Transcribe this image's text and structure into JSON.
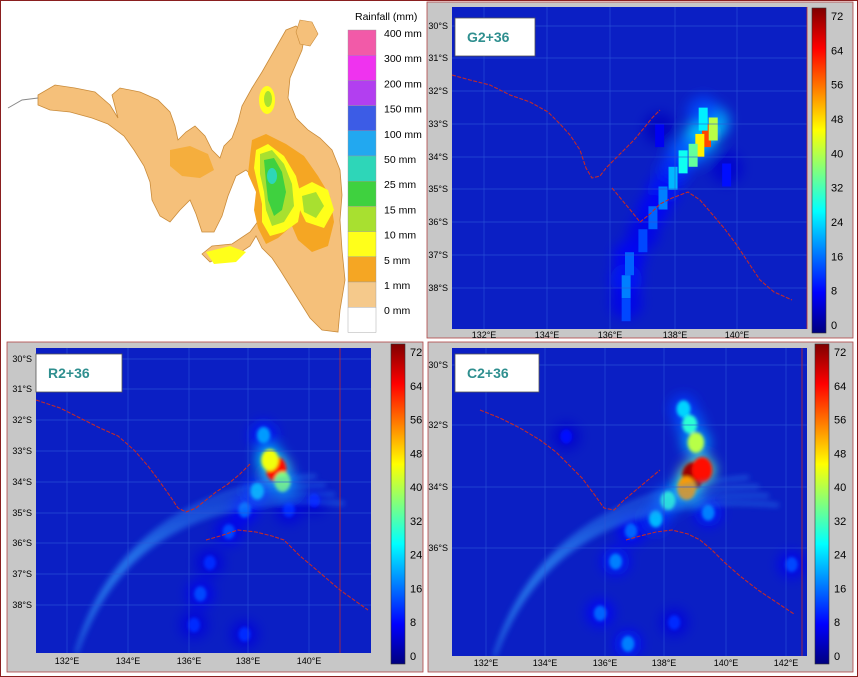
{
  "observed": {
    "legend_title": "Rainfall (mm)",
    "legend_labels": [
      "400 mm",
      "300 mm",
      "200 mm",
      "150 mm",
      "100 mm",
      "50 mm",
      "25 mm",
      "15 mm",
      "10 mm",
      "5 mm",
      "1 mm",
      "0 mm"
    ],
    "legend_colors": [
      "#f25aa8",
      "#ef33ef",
      "#b23ff0",
      "#3c5ce6",
      "#22a8f0",
      "#2ed6b8",
      "#3fd13f",
      "#a8e030",
      "#ffff1a",
      "#f5a623",
      "#f5c98b",
      "#ffffff"
    ],
    "land_color": "#f5c07a"
  },
  "colormap": [
    "#00007f",
    "#0000ff",
    "#007fff",
    "#00ffff",
    "#7fff7f",
    "#ffff00",
    "#ff7f00",
    "#ff0000",
    "#7f0000"
  ],
  "panels": [
    {
      "label": "G2+36",
      "lat_ticks": [
        "30°S",
        "31°S",
        "32°S",
        "33°S",
        "34°S",
        "35°S",
        "36°S",
        "37°S",
        "38°S"
      ],
      "lon_ticks": [
        "132°E",
        "134°E",
        "136°E",
        "138°E",
        "140°E"
      ],
      "colorbar_ticks": [
        "72",
        "64",
        "56",
        "48",
        "40",
        "32",
        "24",
        "16",
        "8",
        "0"
      ]
    },
    {
      "label": "R2+36",
      "lat_ticks": [
        "30°S",
        "31°S",
        "32°S",
        "33°S",
        "34°S",
        "35°S",
        "36°S",
        "37°S",
        "38°S"
      ],
      "lon_ticks": [
        "132°E",
        "134°E",
        "136°E",
        "138°E",
        "140°E"
      ],
      "colorbar_ticks": [
        "72",
        "64",
        "56",
        "48",
        "40",
        "32",
        "24",
        "16",
        "8",
        "0"
      ]
    },
    {
      "label": "C2+36",
      "lat_ticks": [
        "30°S",
        "32°S",
        "34°S",
        "36°S"
      ],
      "lon_ticks": [
        "132°E",
        "134°E",
        "136°E",
        "138°E",
        "140°E",
        "142°E"
      ],
      "colorbar_ticks": [
        "72",
        "64",
        "56",
        "48",
        "40",
        "32",
        "24",
        "16",
        "8",
        "0"
      ]
    }
  ],
  "chart_data": [
    {
      "type": "heatmap",
      "title": "G2+36",
      "xlim": [
        130.8,
        141.4
      ],
      "ylim": [
        -39.4,
        -29.6
      ],
      "colorbar_range": [
        0,
        72
      ],
      "cells": [
        {
          "lon": 138.4,
          "lat": -33.3,
          "v": 58
        },
        {
          "lon": 138.2,
          "lat": -33.6,
          "v": 46
        },
        {
          "lon": 138.6,
          "lat": -33.1,
          "v": 40
        },
        {
          "lon": 138.0,
          "lat": -33.9,
          "v": 34
        },
        {
          "lon": 138.3,
          "lat": -32.8,
          "v": 26
        },
        {
          "lon": 137.7,
          "lat": -34.1,
          "v": 28
        },
        {
          "lon": 137.4,
          "lat": -34.6,
          "v": 22
        },
        {
          "lon": 137.1,
          "lat": -35.2,
          "v": 18
        },
        {
          "lon": 136.8,
          "lat": -35.8,
          "v": 16
        },
        {
          "lon": 136.5,
          "lat": -36.5,
          "v": 14
        },
        {
          "lon": 136.1,
          "lat": -37.2,
          "v": 16
        },
        {
          "lon": 136.0,
          "lat": -37.9,
          "v": 18
        },
        {
          "lon": 136.0,
          "lat": -38.6,
          "v": 14
        },
        {
          "lon": 139.0,
          "lat": -34.5,
          "v": 10
        },
        {
          "lon": 137.0,
          "lat": -33.3,
          "v": 8
        }
      ]
    },
    {
      "type": "heatmap",
      "title": "R2+36",
      "xlim": [
        130.8,
        141.4
      ],
      "ylim": [
        -39.4,
        -29.6
      ],
      "colorbar_range": [
        0,
        72
      ],
      "cells": [
        {
          "lon": 138.4,
          "lat": -33.5,
          "v": 62
        },
        {
          "lon": 138.2,
          "lat": -33.2,
          "v": 44
        },
        {
          "lon": 138.6,
          "lat": -33.9,
          "v": 36
        },
        {
          "lon": 138.0,
          "lat": -32.4,
          "v": 20
        },
        {
          "lon": 137.8,
          "lat": -34.2,
          "v": 22
        },
        {
          "lon": 137.4,
          "lat": -34.8,
          "v": 16
        },
        {
          "lon": 136.9,
          "lat": -35.5,
          "v": 14
        },
        {
          "lon": 136.3,
          "lat": -36.5,
          "v": 12
        },
        {
          "lon": 136.0,
          "lat": -37.5,
          "v": 14
        },
        {
          "lon": 135.8,
          "lat": -38.5,
          "v": 12
        },
        {
          "lon": 138.8,
          "lat": -34.8,
          "v": 12
        },
        {
          "lon": 137.4,
          "lat": -38.8,
          "v": 12
        },
        {
          "lon": 139.6,
          "lat": -34.5,
          "v": 10
        }
      ]
    },
    {
      "type": "heatmap",
      "title": "C2+36",
      "xlim": [
        130.8,
        142.3
      ],
      "ylim": [
        -39.7,
        -29.6
      ],
      "colorbar_range": [
        0,
        72
      ],
      "cells": [
        {
          "lon": 138.6,
          "lat": -33.8,
          "v": 70
        },
        {
          "lon": 138.9,
          "lat": -33.6,
          "v": 62
        },
        {
          "lon": 138.4,
          "lat": -34.2,
          "v": 52
        },
        {
          "lon": 138.7,
          "lat": -32.7,
          "v": 40
        },
        {
          "lon": 138.5,
          "lat": -32.1,
          "v": 30
        },
        {
          "lon": 138.3,
          "lat": -31.6,
          "v": 24
        },
        {
          "lon": 137.8,
          "lat": -34.6,
          "v": 30
        },
        {
          "lon": 137.4,
          "lat": -35.2,
          "v": 22
        },
        {
          "lon": 139.1,
          "lat": -35.0,
          "v": 18
        },
        {
          "lon": 136.6,
          "lat": -35.6,
          "v": 16
        },
        {
          "lon": 136.1,
          "lat": -36.6,
          "v": 18
        },
        {
          "lon": 135.6,
          "lat": -38.3,
          "v": 16
        },
        {
          "lon": 141.8,
          "lat": -36.7,
          "v": 14
        },
        {
          "lon": 136.5,
          "lat": -39.3,
          "v": 18
        },
        {
          "lon": 138.0,
          "lat": -38.6,
          "v": 12
        },
        {
          "lon": 134.5,
          "lat": -32.5,
          "v": 10
        }
      ]
    }
  ]
}
